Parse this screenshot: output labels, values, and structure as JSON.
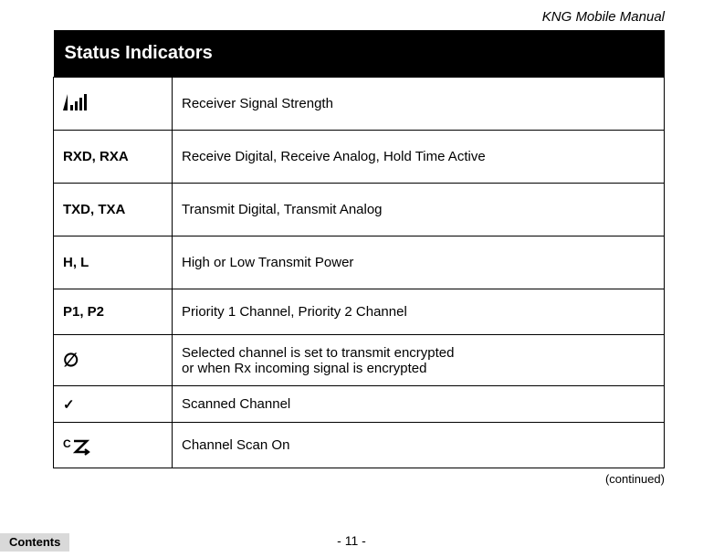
{
  "doc": {
    "header": "KNG Mobile Manual"
  },
  "table": {
    "title": "Status Indicators",
    "rows": [
      {
        "icon": "signal",
        "label": "",
        "desc": "Receiver Signal Strength",
        "h": "h-tall",
        "bold": true
      },
      {
        "icon": "",
        "label": "RXD, RXA",
        "desc": "Receive Digital, Receive Analog, Hold Time Active",
        "h": "h-tall",
        "bold": true
      },
      {
        "icon": "",
        "label": "TXD, TXA",
        "desc": "Transmit Digital, Transmit Analog",
        "h": "h-tall",
        "bold": true
      },
      {
        "icon": "",
        "label": "H, L",
        "desc": "High or Low Transmit Power",
        "h": "h-tall",
        "bold": true
      },
      {
        "icon": "",
        "label": "P1, P2",
        "desc": "Priority 1 Channel, Priority 2 Channel",
        "h": "h-med",
        "bold": true
      },
      {
        "icon": "empty-set",
        "label": "",
        "desc": "Selected channel is set to transmit encrypted\nor when Rx incoming signal is encrypted",
        "h": "h-two",
        "bold": false
      },
      {
        "icon": "check",
        "label": "",
        "desc": "Scanned Channel",
        "h": "h-small",
        "bold": false
      },
      {
        "icon": "cz",
        "label": "",
        "desc": "Channel Scan On",
        "h": "h-med",
        "bold": false
      }
    ],
    "continued": "(continued)"
  },
  "footer": {
    "page": "- 11 -",
    "contents": "Contents"
  },
  "icons": {
    "empty_set_char": "∅",
    "check_char": "✓"
  }
}
